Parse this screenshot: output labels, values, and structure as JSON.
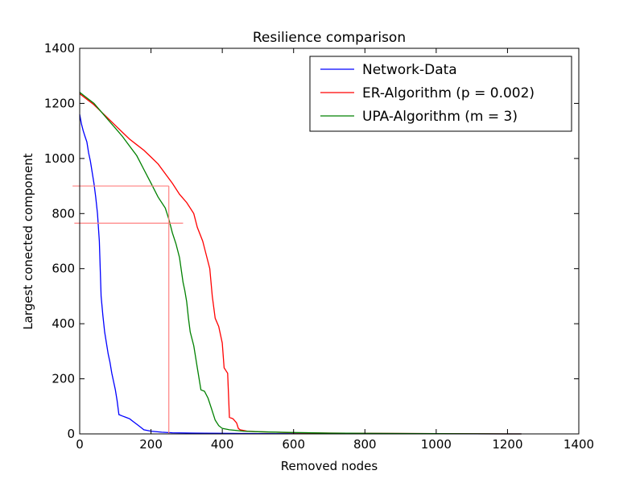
{
  "chart_data": {
    "type": "line",
    "title": "Resilience comparison",
    "xlabel": "Removed nodes",
    "ylabel": "Largest conected component",
    "xlim": [
      0,
      1400
    ],
    "ylim": [
      0,
      1400
    ],
    "xticks": [
      0,
      200,
      400,
      600,
      800,
      1000,
      1200,
      1400
    ],
    "yticks": [
      0,
      200,
      400,
      600,
      800,
      1000,
      1200,
      1400
    ],
    "xtick_labels": [
      "0",
      "200",
      "400",
      "600",
      "800",
      "1000",
      "1200",
      "1400"
    ],
    "ytick_labels": [
      "0",
      "200",
      "400",
      "600",
      "800",
      "1000",
      "1200",
      "1400"
    ],
    "grid": false,
    "legend_position": "top-right",
    "series": [
      {
        "name": "Network-Data",
        "color": "#0000ff",
        "points": [
          [
            0,
            1160
          ],
          [
            5,
            1125
          ],
          [
            10,
            1100
          ],
          [
            15,
            1080
          ],
          [
            20,
            1060
          ],
          [
            25,
            1020
          ],
          [
            30,
            990
          ],
          [
            35,
            950
          ],
          [
            40,
            910
          ],
          [
            45,
            860
          ],
          [
            50,
            800
          ],
          [
            55,
            700
          ],
          [
            60,
            500
          ],
          [
            65,
            430
          ],
          [
            70,
            370
          ],
          [
            75,
            330
          ],
          [
            80,
            290
          ],
          [
            85,
            260
          ],
          [
            90,
            220
          ],
          [
            95,
            190
          ],
          [
            100,
            160
          ],
          [
            105,
            120
          ],
          [
            110,
            70
          ],
          [
            120,
            65
          ],
          [
            130,
            60
          ],
          [
            140,
            55
          ],
          [
            150,
            45
          ],
          [
            160,
            35
          ],
          [
            170,
            25
          ],
          [
            180,
            15
          ],
          [
            200,
            10
          ],
          [
            230,
            6
          ],
          [
            260,
            4
          ],
          [
            320,
            3
          ],
          [
            400,
            2
          ],
          [
            500,
            1
          ],
          [
            600,
            0.5
          ],
          [
            800,
            0.3
          ],
          [
            1000,
            0.2
          ],
          [
            1239,
            0
          ]
        ]
      },
      {
        "name": "ER-Algorithm (p = 0.002)",
        "color": "#ff0000",
        "points": [
          [
            0,
            1235
          ],
          [
            20,
            1215
          ],
          [
            40,
            1195
          ],
          [
            60,
            1170
          ],
          [
            80,
            1145
          ],
          [
            100,
            1120
          ],
          [
            120,
            1095
          ],
          [
            140,
            1070
          ],
          [
            160,
            1050
          ],
          [
            180,
            1030
          ],
          [
            200,
            1005
          ],
          [
            220,
            980
          ],
          [
            240,
            945
          ],
          [
            260,
            910
          ],
          [
            280,
            870
          ],
          [
            300,
            840
          ],
          [
            320,
            800
          ],
          [
            330,
            750
          ],
          [
            345,
            700
          ],
          [
            355,
            650
          ],
          [
            365,
            600
          ],
          [
            372,
            500
          ],
          [
            380,
            420
          ],
          [
            390,
            390
          ],
          [
            400,
            330
          ],
          [
            405,
            240
          ],
          [
            410,
            230
          ],
          [
            415,
            220
          ],
          [
            420,
            60
          ],
          [
            430,
            55
          ],
          [
            440,
            40
          ],
          [
            445,
            20
          ],
          [
            450,
            15
          ],
          [
            470,
            10
          ],
          [
            500,
            8
          ],
          [
            550,
            6
          ],
          [
            600,
            4
          ],
          [
            700,
            3
          ],
          [
            800,
            2
          ],
          [
            1000,
            1
          ],
          [
            1239,
            0
          ]
        ]
      },
      {
        "name": "UPA-Algorithm (m = 3)",
        "color": "#008000",
        "points": [
          [
            0,
            1240
          ],
          [
            20,
            1220
          ],
          [
            40,
            1200
          ],
          [
            60,
            1170
          ],
          [
            80,
            1140
          ],
          [
            100,
            1110
          ],
          [
            120,
            1080
          ],
          [
            140,
            1045
          ],
          [
            160,
            1010
          ],
          [
            180,
            960
          ],
          [
            200,
            910
          ],
          [
            220,
            860
          ],
          [
            240,
            820
          ],
          [
            250,
            780
          ],
          [
            260,
            730
          ],
          [
            270,
            690
          ],
          [
            280,
            640
          ],
          [
            290,
            550
          ],
          [
            295,
            520
          ],
          [
            300,
            480
          ],
          [
            305,
            420
          ],
          [
            310,
            370
          ],
          [
            320,
            320
          ],
          [
            330,
            240
          ],
          [
            340,
            160
          ],
          [
            350,
            155
          ],
          [
            360,
            130
          ],
          [
            370,
            90
          ],
          [
            380,
            50
          ],
          [
            390,
            30
          ],
          [
            400,
            20
          ],
          [
            420,
            15
          ],
          [
            460,
            10
          ],
          [
            500,
            8
          ],
          [
            600,
            5
          ],
          [
            700,
            3
          ],
          [
            800,
            2
          ],
          [
            1000,
            1
          ],
          [
            1239,
            0
          ]
        ]
      }
    ],
    "reference_lines": [
      {
        "color": "#ff8080",
        "from": [
          -15,
          765
        ],
        "to": [
          290,
          765
        ]
      },
      {
        "color": "#ff8080",
        "from": [
          -20,
          900
        ],
        "to": [
          250,
          900
        ]
      },
      {
        "color": "#ff8080",
        "from": [
          250,
          900
        ],
        "to": [
          250,
          0
        ]
      }
    ]
  }
}
